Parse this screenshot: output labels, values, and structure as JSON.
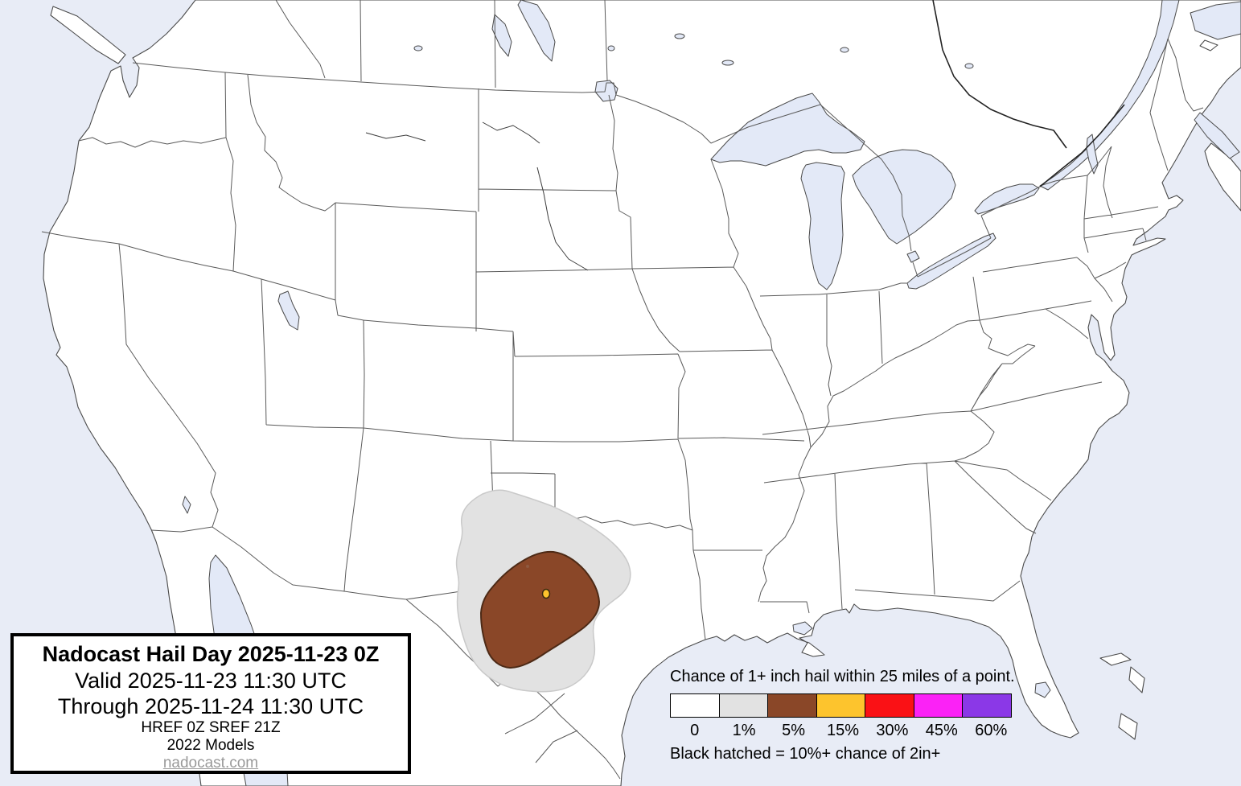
{
  "product": {
    "title": "Nadocast Hail Day 2025-11-23 0Z",
    "valid_line": "Valid 2025-11-23 11:30 UTC",
    "through_line": "Through 2025-11-24 11:30 UTC",
    "models_line1": "HREF 0Z SREF 21Z",
    "models_line2": "2022 Models",
    "website": "nadocast.com"
  },
  "legend": {
    "heading": "Chance of 1+ inch hail within 25 miles of a point.",
    "note": "Black hatched = 10%+ chance of 2in+",
    "bins": [
      {
        "label": "0",
        "color": "#ffffff"
      },
      {
        "label": "1%",
        "color": "#e2e2e2"
      },
      {
        "label": "5%",
        "color": "#8a4728"
      },
      {
        "label": "15%",
        "color": "#fdc42d"
      },
      {
        "label": "30%",
        "color": "#fa1115"
      },
      {
        "label": "45%",
        "color": "#fb22f6"
      },
      {
        "label": "60%",
        "color": "#8b38e7"
      }
    ]
  },
  "map": {
    "ocean_color": "#e8ecf6",
    "lake_color": "#e3e9f7",
    "land_color": "#ffffff",
    "state_border_color": "#5a5a5a",
    "forecast": {
      "areas": [
        {
          "level": "1%",
          "color": "#e2e2e2",
          "region": "eastern New Mexico and west Texas"
        },
        {
          "level": "5%",
          "color": "#8a4728",
          "region": "west Texas"
        },
        {
          "level": "15%",
          "color": "#fdc42d",
          "region": "point in west-central Texas"
        }
      ]
    }
  }
}
